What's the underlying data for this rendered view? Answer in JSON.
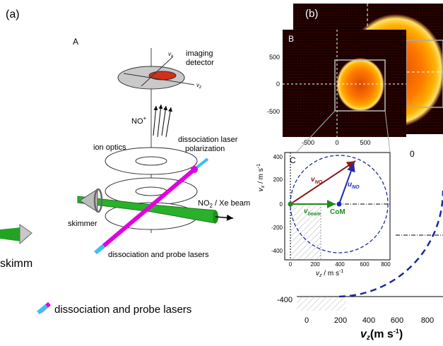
{
  "background": {
    "panel_tag": "(a)",
    "skimmer_text": "skimm",
    "lasers_label": "dissociation and probe lasers",
    "big_tick_left": "-400",
    "x_ticks": [
      "0",
      "200",
      "400",
      "600",
      "800"
    ],
    "x_axis_label": "v",
    "x_axis_sub": "z",
    "x_axis_unit": "(m s",
    "x_axis_unit_sup": "-1",
    "x_axis_unit_close": ")",
    "top_label": "(b)",
    "partial_tick": "0"
  },
  "panel_a": {
    "letter": "A",
    "imaging_detector": [
      "imaging",
      "detector"
    ],
    "vx_axis": "v",
    "vx_sub": "x",
    "vz_axis": "v",
    "vz_sub": "z",
    "ion": "NO",
    "ion_sup": "+",
    "ion_optics": "ion optics",
    "pol_label": [
      "dissociation laser",
      "polarization"
    ],
    "beam_label": "NO",
    "beam_label_sub": "2",
    "beam_label_rest": " / Xe beam",
    "skimmer": "skimmer",
    "lasers": "dissociation and probe lasers"
  },
  "panel_b": {
    "letter": "B",
    "y_ticks": [
      "500",
      "0",
      "-500"
    ],
    "x_ticks": [
      "-500",
      "0",
      "500"
    ]
  },
  "panel_c": {
    "letter": "C",
    "y_ticks": [
      "400",
      "200",
      "0",
      "-200",
      "-400"
    ],
    "x_ticks": [
      "0",
      "200",
      "400",
      "600",
      "800"
    ],
    "y_label": "v",
    "y_label_sub": "x",
    "y_label_unit": "  /  m s",
    "y_label_sup": "-1",
    "x_label": "v",
    "x_label_sub": "z",
    "x_label_unit": "  /  m s",
    "x_label_sup": "-1",
    "v_no": "v",
    "v_no_sub": "NO",
    "u_no": "u",
    "u_no_sub": "NO",
    "v_beam": "v",
    "v_beam_sub": "beam",
    "com": "CoM",
    "colors": {
      "v_no": "#8b1a1a",
      "u_no": "#1f2aa6",
      "v_beam": "#1e8a1e",
      "circle": "#1a2a9a"
    }
  }
}
